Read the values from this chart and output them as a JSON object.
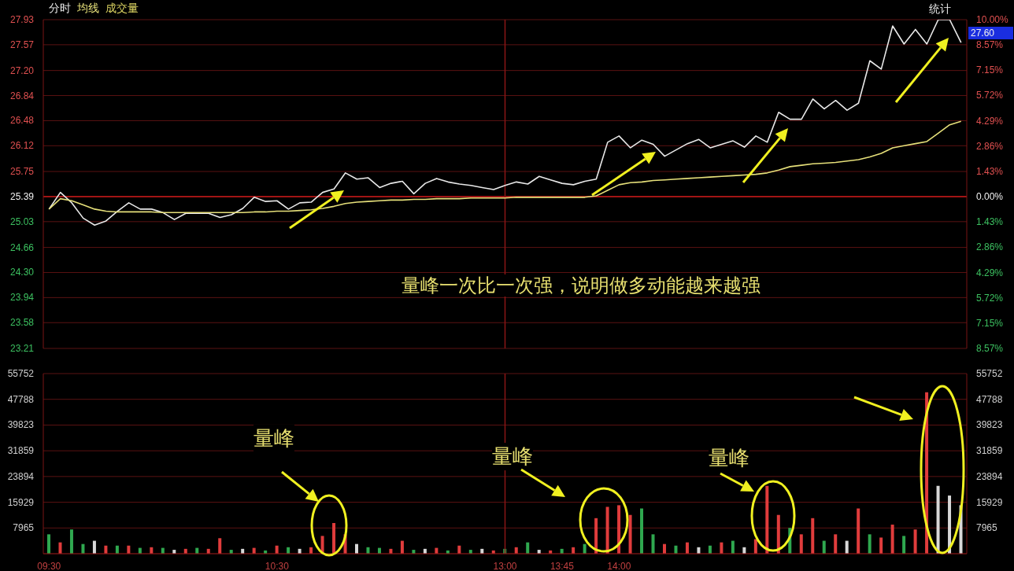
{
  "chart_data": [
    {
      "type": "line",
      "legend": "top left",
      "grid": "y",
      "tick_labels": "y",
      "annotations": [
        "量峰一次比一次强，说明做多动能越来越强",
        "统计",
        "27.60"
      ],
      "categories": [
        "09:30",
        null,
        null,
        null,
        null,
        null,
        null,
        null,
        null,
        null,
        null,
        null,
        null,
        null,
        null,
        null,
        null,
        null,
        null,
        null,
        "10:30",
        null,
        null,
        null,
        null,
        null,
        null,
        null,
        null,
        null,
        null,
        null,
        null,
        null,
        null,
        null,
        null,
        null,
        null,
        null,
        "13:00",
        null,
        null,
        null,
        null,
        "13:45",
        null,
        null,
        null,
        null,
        "14:00",
        null,
        null,
        null,
        null,
        null,
        null,
        null,
        null,
        null,
        null,
        null,
        null,
        null,
        null,
        null,
        null,
        null,
        null,
        null,
        null,
        null,
        null,
        null,
        null,
        null,
        null,
        null,
        null,
        null,
        null
      ],
      "ylim": [
        23.21,
        27.93
      ],
      "yticks": [
        27.93,
        27.57,
        {
          "value": 27.2,
          "label": "27.20"
        },
        26.84,
        26.48,
        26.12,
        25.75,
        25.39,
        25.03,
        24.66,
        {
          "value": 24.3,
          "label": "24.30"
        },
        23.94,
        23.58,
        23.21
      ],
      "y2lim": [
        -8.57,
        10.0
      ],
      "y2ticks": [
        {
          "value": 10.0,
          "label": "10.00%"
        },
        {
          "value": 8.57,
          "label": "8.57%"
        },
        {
          "value": 7.15,
          "label": "7.15%"
        },
        {
          "value": 5.72,
          "label": "5.72%"
        },
        {
          "value": 4.29,
          "label": "4.29%"
        },
        {
          "value": 2.86,
          "label": "2.86%"
        },
        {
          "value": 1.43,
          "label": "1.43%"
        },
        {
          "value": 0,
          "label": "0.00%"
        },
        {
          "value": -1.43,
          "label": "1.43%"
        },
        {
          "value": -2.86,
          "label": "2.86%"
        },
        {
          "value": -4.29,
          "label": "4.29%"
        },
        {
          "value": -5.72,
          "label": "5.72%"
        },
        {
          "value": -7.15,
          "label": "7.15%"
        },
        {
          "value": -8.57,
          "label": "8.57%"
        }
      ],
      "ref_lines": [
        {
          "axis": "y",
          "value": 25.39,
          "color": "#c81a1a"
        },
        {
          "axis": "x",
          "value": "13:00",
          "color": "#8a1515"
        }
      ],
      "series": [
        {
          "name": "分时",
          "color": "#e8e8e8",
          "values": [
            25.21,
            25.45,
            25.3,
            25.08,
            24.98,
            25.04,
            25.18,
            25.3,
            25.21,
            25.21,
            25.16,
            25.06,
            25.15,
            25.15,
            25.15,
            25.09,
            25.13,
            25.22,
            25.38,
            25.32,
            25.33,
            25.21,
            25.3,
            25.31,
            25.45,
            25.5,
            25.73,
            25.64,
            25.66,
            25.52,
            25.58,
            25.61,
            25.43,
            25.58,
            25.65,
            25.6,
            25.57,
            25.55,
            25.52,
            25.49,
            25.55,
            25.6,
            25.57,
            25.68,
            25.63,
            25.58,
            25.56,
            25.61,
            25.64,
            26.17,
            26.26,
            26.09,
            26.2,
            26.14,
            25.97,
            26.06,
            26.15,
            26.21,
            26.09,
            26.14,
            26.19,
            26.1,
            26.26,
            26.17,
            26.6,
            26.5,
            26.5,
            26.79,
            26.65,
            26.77,
            26.63,
            26.73,
            27.34,
            27.22,
            27.84,
            27.58,
            27.79,
            27.58,
            27.93,
            27.93,
            27.6
          ]
        },
        {
          "name": "均线",
          "color": "#e6e07a",
          "values": [
            25.21,
            25.36,
            25.33,
            25.27,
            25.21,
            25.18,
            25.17,
            25.17,
            25.17,
            25.17,
            25.16,
            25.16,
            25.16,
            25.16,
            25.16,
            25.16,
            25.16,
            25.16,
            25.17,
            25.17,
            25.18,
            25.18,
            25.19,
            25.2,
            25.22,
            25.25,
            25.29,
            25.31,
            25.32,
            25.33,
            25.34,
            25.34,
            25.35,
            25.35,
            25.36,
            25.36,
            25.36,
            25.37,
            25.37,
            25.37,
            25.37,
            25.38,
            25.38,
            25.38,
            25.38,
            25.38,
            25.38,
            25.38,
            25.4,
            25.48,
            25.56,
            25.59,
            25.6,
            25.62,
            25.63,
            25.64,
            25.65,
            25.66,
            25.67,
            25.68,
            25.69,
            25.7,
            25.71,
            25.73,
            25.77,
            25.82,
            25.84,
            25.86,
            25.87,
            25.88,
            25.9,
            25.92,
            25.96,
            26.01,
            26.09,
            26.12,
            26.15,
            26.18,
            26.3,
            26.42,
            26.47
          ]
        }
      ]
    },
    {
      "type": "bar",
      "title": "成交量",
      "grid": "y",
      "annotations": [
        "量峰",
        "量峰",
        "量峰"
      ],
      "categories": [
        "09:30",
        null,
        null,
        null,
        null,
        null,
        null,
        null,
        null,
        null,
        null,
        null,
        null,
        null,
        null,
        null,
        null,
        null,
        null,
        null,
        "10:30",
        null,
        null,
        null,
        null,
        null,
        null,
        null,
        null,
        null,
        null,
        null,
        null,
        null,
        null,
        null,
        null,
        null,
        null,
        null,
        "13:00",
        null,
        null,
        null,
        null,
        "13:45",
        null,
        null,
        null,
        null,
        "14:00",
        null,
        null,
        null,
        null,
        null,
        null,
        null,
        null,
        null,
        null,
        null,
        null,
        null,
        null,
        null,
        null,
        null,
        null,
        null,
        null,
        null,
        null,
        null,
        null,
        null,
        null,
        null,
        null,
        null,
        null
      ],
      "ylim": [
        0,
        55752
      ],
      "yticks": [
        7965,
        15929,
        23894,
        31859,
        39823,
        47788,
        55752
      ],
      "y2lim": [
        0,
        55752
      ],
      "y2ticks": [
        7965,
        15929,
        23894,
        31859,
        39823,
        47788,
        55752
      ],
      "ref_lines": [
        {
          "axis": "x",
          "value": "13:00",
          "color": "#8a1515"
        }
      ],
      "values": [
        6000,
        3500,
        7500,
        3000,
        4000,
        2500,
        2500,
        2500,
        1800,
        2000,
        1800,
        1200,
        1500,
        1800,
        1500,
        4800,
        1200,
        1500,
        1800,
        1000,
        2500,
        2000,
        1500,
        2000,
        5500,
        9500,
        6000,
        3000,
        2000,
        1800,
        1500,
        4000,
        1200,
        1500,
        1800,
        1000,
        2500,
        1200,
        1500,
        1000,
        1500,
        2000,
        3500,
        1200,
        1000,
        1500,
        2000,
        3000,
        11000,
        14500,
        15000,
        12000,
        14000,
        6000,
        3000,
        2500,
        3500,
        2000,
        2500,
        3500,
        4000,
        2000,
        4500,
        21000,
        12000,
        8000,
        6000,
        11000,
        4000,
        6000,
        4000,
        14000,
        6000,
        5000,
        9000,
        5500,
        7500,
        50000,
        21000,
        18000,
        15000
      ],
      "colors": [
        "#2fa84f",
        "#e03c3c",
        "#2fa84f",
        "#2fa84f",
        "#d8d8d8",
        "#e03c3c",
        "#2fa84f",
        "#e03c3c",
        "#2fa84f",
        "#e03c3c",
        "#2fa84f",
        "#d8d8d8",
        "#e03c3c",
        "#2fa84f",
        "#e03c3c",
        "#e03c3c",
        "#2fa84f",
        "#d8d8d8",
        "#e03c3c",
        "#2fa84f",
        "#e03c3c",
        "#2fa84f",
        "#d8d8d8",
        "#e03c3c",
        "#e03c3c",
        "#e03c3c",
        "#e03c3c",
        "#d8d8d8",
        "#2fa84f",
        "#2fa84f",
        "#e03c3c",
        "#e03c3c",
        "#2fa84f",
        "#d8d8d8",
        "#e03c3c",
        "#2fa84f",
        "#e03c3c",
        "#2fa84f",
        "#d8d8d8",
        "#e03c3c",
        "#2fa84f",
        "#e03c3c",
        "#2fa84f",
        "#d8d8d8",
        "#e03c3c",
        "#2fa84f",
        "#e03c3c",
        "#2fa84f",
        "#e03c3c",
        "#e03c3c",
        "#e03c3c",
        "#e03c3c",
        "#2fa84f",
        "#2fa84f",
        "#e03c3c",
        "#2fa84f",
        "#e03c3c",
        "#d8d8d8",
        "#2fa84f",
        "#e03c3c",
        "#2fa84f",
        "#d8d8d8",
        "#e03c3c",
        "#e03c3c",
        "#e03c3c",
        "#2fa84f",
        "#e03c3c",
        "#e03c3c",
        "#2fa84f",
        "#e03c3c",
        "#d8d8d8",
        "#e03c3c",
        "#2fa84f",
        "#e03c3c",
        "#e03c3c",
        "#2fa84f",
        "#e03c3c",
        "#e03c3c",
        "#d8d8d8",
        "#d8d8d8",
        "#d8d8d8"
      ]
    }
  ]
}
